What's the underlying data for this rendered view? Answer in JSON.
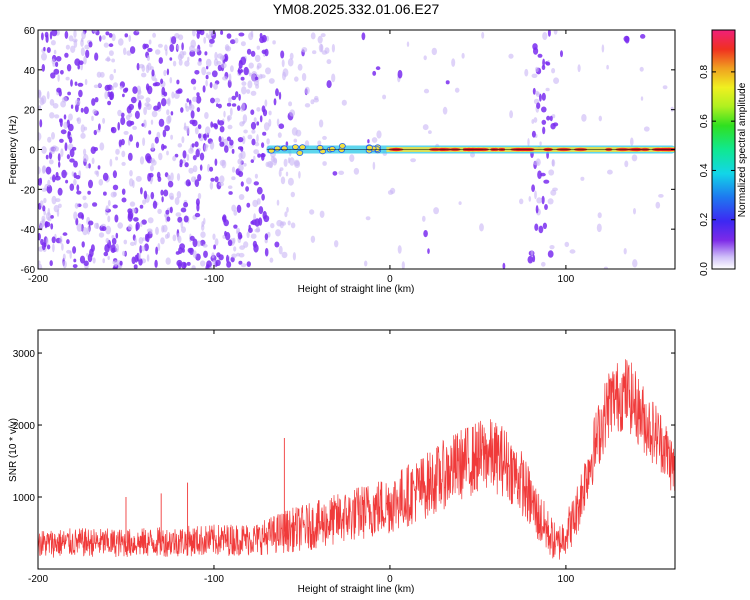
{
  "title": "YM08.2025.332.01.06.E27",
  "colors": {
    "spectrogram_noise": "#7a2df0",
    "spectrogram_light": "#c9b6f5",
    "snr_line": "#f03a3a",
    "band_outer": "#28c8e8",
    "band_mid": "#f0e040",
    "band_core": "#e82020"
  },
  "chart_data": [
    {
      "type": "heatmap",
      "name": "spectrogram",
      "xlabel": "Height of straight line (km)",
      "ylabel": "Frequency (Hz)",
      "xlim": [
        -200,
        162
      ],
      "ylim": [
        -60,
        60
      ],
      "xticks": [
        "-200",
        "-100",
        "0",
        "100"
      ],
      "xtick_values": [
        -200,
        -100,
        0,
        100
      ],
      "yticks": [
        "60",
        "40",
        "20",
        "0",
        "-20",
        "-40",
        "-60"
      ],
      "ytick_values": [
        60,
        40,
        20,
        0,
        -20,
        -40,
        -60
      ],
      "colorbar": {
        "label": "Normalized spectral amplitude",
        "range": [
          0,
          0.97
        ],
        "ticks": [
          "0.0",
          "0.2",
          "0.4",
          "0.6",
          "0.8"
        ],
        "tick_values": [
          0.0,
          0.2,
          0.4,
          0.6,
          0.8
        ]
      },
      "signal_band": {
        "center_hz": 0,
        "x_start": -70,
        "x_end": 162,
        "strong_x_start": -2,
        "strong_x_end": 162,
        "gap_x": [
          75,
          82,
          90,
          93
        ],
        "noise_vertical_bands_x": [
          [
            78,
            95
          ],
          [
            -68,
            -55
          ]
        ]
      }
    },
    {
      "type": "line",
      "name": "snr",
      "xlabel": "Height of straight line (km)",
      "ylabel": "SNR (10 * v/v)",
      "xlim": [
        -200,
        162
      ],
      "ylim": [
        0,
        3320
      ],
      "xticks": [
        "-200",
        "-100",
        "0",
        "100"
      ],
      "xtick_values": [
        -200,
        -100,
        0,
        100
      ],
      "yticks": [
        "3000",
        "2000",
        "1000"
      ],
      "ytick_values": [
        3000,
        2000,
        1000
      ],
      "envelope_x": [
        -200,
        -175,
        -150,
        -125,
        -100,
        -75,
        -60,
        -40,
        -20,
        0,
        20,
        40,
        55,
        65,
        75,
        85,
        95,
        105,
        115,
        125,
        135,
        145,
        155,
        162
      ],
      "envelope_y": [
        350,
        370,
        360,
        380,
        400,
        420,
        520,
        620,
        760,
        900,
        1150,
        1450,
        1600,
        1500,
        1200,
        700,
        320,
        700,
        1600,
        2350,
        2450,
        2050,
        1750,
        1350
      ],
      "envelope_spread": [
        200,
        200,
        200,
        210,
        220,
        230,
        300,
        340,
        380,
        420,
        460,
        500,
        520,
        500,
        450,
        380,
        260,
        350,
        450,
        500,
        520,
        480,
        440,
        400
      ],
      "spikes": [
        {
          "x": -60,
          "y": 1820
        },
        {
          "x": -115,
          "y": 1200
        },
        {
          "x": -150,
          "y": 1000
        },
        {
          "x": -130,
          "y": 1050
        }
      ]
    }
  ]
}
